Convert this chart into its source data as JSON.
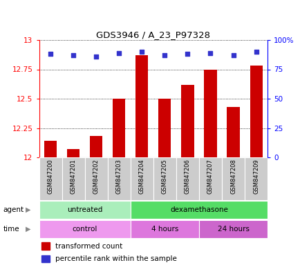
{
  "title": "GDS3946 / A_23_P97328",
  "samples": [
    "GSM847200",
    "GSM847201",
    "GSM847202",
    "GSM847203",
    "GSM847204",
    "GSM847205",
    "GSM847206",
    "GSM847207",
    "GSM847208",
    "GSM847209"
  ],
  "bar_values": [
    12.14,
    12.07,
    12.18,
    12.5,
    12.87,
    12.5,
    12.62,
    12.75,
    12.43,
    12.78
  ],
  "percentile_values": [
    88,
    87,
    86,
    89,
    90,
    87,
    88,
    89,
    87,
    90
  ],
  "ylim_left": [
    12,
    13
  ],
  "ylim_right": [
    0,
    100
  ],
  "yticks_left": [
    12,
    12.25,
    12.5,
    12.75,
    13
  ],
  "yticks_right": [
    0,
    25,
    50,
    75,
    100
  ],
  "bar_color": "#cc0000",
  "dot_color": "#3333cc",
  "agent_groups": [
    {
      "label": "untreated",
      "start": 0,
      "end": 4,
      "color": "#aaeebb"
    },
    {
      "label": "dexamethasone",
      "start": 4,
      "end": 10,
      "color": "#55dd66"
    }
  ],
  "time_groups": [
    {
      "label": "control",
      "start": 0,
      "end": 4,
      "color": "#ee99ee"
    },
    {
      "label": "4 hours",
      "start": 4,
      "end": 7,
      "color": "#dd77dd"
    },
    {
      "label": "24 hours",
      "start": 7,
      "end": 10,
      "color": "#cc66cc"
    }
  ],
  "legend_red": "transformed count",
  "legend_blue": "percentile rank within the sample",
  "label_bg": "#cccccc"
}
